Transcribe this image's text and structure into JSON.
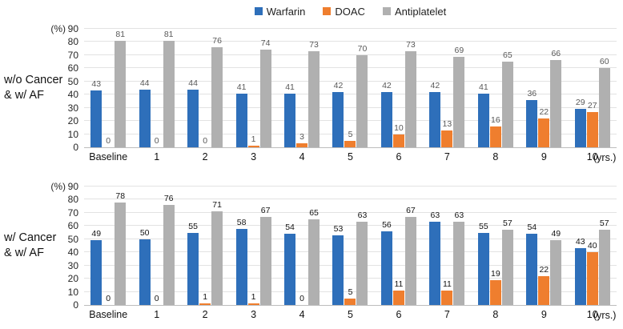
{
  "legend": {
    "items": [
      {
        "label": "Warfarin",
        "color": "#2E6FBA"
      },
      {
        "label": "DOAC",
        "color": "#EF7E2E"
      },
      {
        "label": "Antiplatelet",
        "color": "#B0B0B0"
      }
    ]
  },
  "chart_data": [
    {
      "type": "bar",
      "panel_label_lines": [
        "w/o Cancer",
        "& w/ AF"
      ],
      "title": "",
      "ylabel": "(%)",
      "xlabel": "(yrs.)",
      "ylim": [
        0,
        90
      ],
      "ytick_step": 10,
      "grid": true,
      "legend_position": "top",
      "value_label_color": "#595959",
      "categories": [
        "Baseline",
        "1",
        "2",
        "3",
        "4",
        "5",
        "6",
        "7",
        "8",
        "9",
        "10"
      ],
      "series": [
        {
          "name": "Warfarin",
          "color": "#2E6FBA",
          "values": [
            43,
            44,
            44,
            41,
            41,
            42,
            42,
            42,
            41,
            36,
            29
          ]
        },
        {
          "name": "DOAC",
          "color": "#EF7E2E",
          "values": [
            0,
            0,
            0,
            1,
            3,
            5,
            10,
            13,
            16,
            22,
            27
          ]
        },
        {
          "name": "Antiplatelet",
          "color": "#B0B0B0",
          "values": [
            81,
            81,
            76,
            74,
            73,
            70,
            73,
            69,
            65,
            66,
            60
          ]
        }
      ]
    },
    {
      "type": "bar",
      "panel_label_lines": [
        "w/ Cancer",
        "& w/ AF"
      ],
      "title": "",
      "ylabel": "(%)",
      "xlabel": "(yrs.)",
      "ylim": [
        0,
        90
      ],
      "ytick_step": 10,
      "grid": true,
      "legend_position": "top",
      "value_label_color": "#141414",
      "categories": [
        "Baseline",
        "1",
        "2",
        "3",
        "4",
        "5",
        "6",
        "7",
        "8",
        "9",
        "10"
      ],
      "series": [
        {
          "name": "Warfarin",
          "color": "#2E6FBA",
          "values": [
            49,
            50,
            55,
            58,
            54,
            53,
            56,
            63,
            55,
            54,
            43
          ]
        },
        {
          "name": "DOAC",
          "color": "#EF7E2E",
          "values": [
            0,
            0,
            1,
            1,
            0,
            5,
            11,
            11,
            19,
            22,
            40
          ]
        },
        {
          "name": "Antiplatelet",
          "color": "#B0B0B0",
          "values": [
            78,
            76,
            71,
            67,
            65,
            63,
            67,
            63,
            57,
            49,
            57
          ]
        }
      ]
    }
  ]
}
